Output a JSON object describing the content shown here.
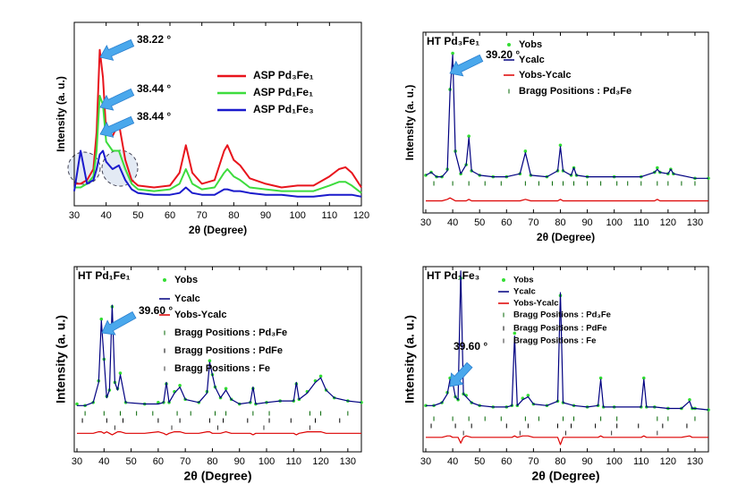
{
  "chart_data": [
    {
      "type": "line",
      "xlabel": "2θ (Degree)",
      "ylabel": "Intensity (a. u.)",
      "xlim": [
        30,
        120
      ],
      "xticks": [
        30,
        40,
        50,
        60,
        70,
        80,
        90,
        100,
        110,
        120
      ],
      "ylim": [
        0,
        100
      ],
      "x": [
        30,
        32,
        34,
        36,
        37,
        38,
        39,
        40,
        42,
        44,
        46,
        48,
        50,
        55,
        60,
        63,
        65,
        67,
        70,
        74,
        77,
        78,
        80,
        82,
        85,
        90,
        95,
        100,
        105,
        110,
        113,
        115,
        117,
        120
      ],
      "series": [
        {
          "name": "ASP Pd₃Fe₁",
          "color": "#e8141c",
          "style": "line",
          "values": [
            12,
            12,
            14,
            20,
            40,
            85,
            70,
            40,
            38,
            45,
            25,
            14,
            11,
            10,
            11,
            18,
            33,
            18,
            12,
            14,
            30,
            33,
            25,
            22,
            15,
            12,
            10,
            11,
            11,
            16,
            20,
            21,
            18,
            10
          ]
        },
        {
          "name": "ASP Pd₁Fe₁",
          "color": "#3ddc3d",
          "style": "line",
          "values": [
            10,
            10,
            12,
            16,
            30,
            60,
            55,
            35,
            30,
            30,
            20,
            12,
            9,
            8,
            9,
            12,
            20,
            12,
            9,
            10,
            18,
            20,
            16,
            14,
            10,
            9,
            8,
            8,
            8,
            11,
            13,
            13,
            11,
            7
          ]
        },
        {
          "name": "ASP Pd₁Fe₃",
          "color": "#1a1acc",
          "style": "line",
          "values": [
            8,
            30,
            12,
            14,
            20,
            28,
            30,
            24,
            20,
            22,
            14,
            9,
            7,
            6,
            6,
            7,
            10,
            7,
            6,
            6,
            9,
            9,
            8,
            8,
            7,
            6,
            6,
            5,
            5,
            6,
            6,
            6,
            6,
            5
          ]
        }
      ],
      "annotations": [
        "38.22 °",
        "38.44 °",
        "38.44 °"
      ]
    },
    {
      "type": "line",
      "title": "HT Pd₃Fe₁",
      "xlabel": "2θ (Degree)",
      "ylabel": "Intensity (a. u.)",
      "xlim": [
        29,
        135
      ],
      "xticks": [
        30,
        40,
        50,
        60,
        70,
        80,
        90,
        100,
        110,
        120,
        130
      ],
      "ylim": [
        -20,
        100
      ],
      "x": [
        30,
        32,
        34,
        36,
        38,
        39,
        40,
        41,
        43,
        45,
        46,
        47,
        50,
        55,
        60,
        65,
        67,
        69,
        75,
        79,
        80,
        81,
        84,
        85,
        86,
        90,
        100,
        110,
        115,
        116,
        117,
        120,
        121,
        122,
        130,
        135
      ],
      "series": [
        {
          "name": "Yobs",
          "color": "#33dd33",
          "style": "points",
          "values": [
            5,
            7,
            4,
            4,
            9,
            62,
            86,
            21,
            6,
            12,
            31,
            8,
            5,
            4,
            4,
            6,
            21,
            5,
            4,
            8,
            25,
            8,
            5,
            10,
            5,
            4,
            4,
            4,
            7,
            10,
            7,
            6,
            9,
            6,
            3,
            3
          ]
        },
        {
          "name": "Ycalc",
          "color": "#000080",
          "style": "line",
          "values": [
            5,
            7,
            4,
            4,
            8,
            60,
            85,
            20,
            6,
            12,
            30,
            8,
            5,
            4,
            4,
            6,
            20,
            5,
            4,
            8,
            24,
            8,
            5,
            10,
            5,
            4,
            4,
            4,
            7,
            9,
            7,
            6,
            9,
            6,
            3,
            3
          ]
        },
        {
          "name": "Yobs-Ycalc",
          "color": "#dd0000",
          "style": "line",
          "values": [
            -12,
            -12,
            -12,
            -12,
            -11,
            -10,
            -11,
            -12,
            -12,
            -12,
            -11,
            -12,
            -12,
            -12,
            -12,
            -12,
            -11,
            -12,
            -12,
            -12,
            -11,
            -12,
            -12,
            -12,
            -12,
            -12,
            -12,
            -12,
            -12,
            -11,
            -12,
            -12,
            -12,
            -12,
            -12,
            -12
          ]
        }
      ],
      "bragg": [
        {
          "name": "Bragg Positions : Pd₃Fe",
          "color": "#006400",
          "positions": [
            33,
            40,
            46,
            52,
            58,
            67,
            72,
            77,
            81,
            85,
            90,
            95,
            101,
            105,
            110,
            116,
            120,
            125,
            130
          ]
        }
      ],
      "annotations": [
        "39.20 °"
      ]
    },
    {
      "type": "line",
      "title": "HT Pd₁Fe₁",
      "xlabel": "2θ (Degree)",
      "ylabel": "Intensity (a. u.)",
      "xlim": [
        29,
        135
      ],
      "xticks": [
        30,
        40,
        50,
        60,
        70,
        80,
        90,
        100,
        110,
        120,
        130
      ],
      "ylim": [
        -20,
        100
      ],
      "x": [
        30,
        33,
        36,
        38,
        39,
        40,
        41,
        42,
        43,
        44,
        45,
        46,
        48,
        55,
        60,
        62,
        63,
        64,
        66,
        68,
        70,
        75,
        78,
        79,
        80,
        81,
        83,
        85,
        87,
        90,
        94,
        95,
        96,
        100,
        105,
        110,
        111,
        112,
        115,
        118,
        120,
        122,
        125,
        130,
        135
      ],
      "series": [
        {
          "name": "Yobs",
          "color": "#33dd33",
          "style": "points",
          "values": [
            11,
            10,
            12,
            26,
            66,
            40,
            16,
            20,
            74,
            25,
            21,
            31,
            12,
            11,
            12,
            12,
            24,
            12,
            19,
            23,
            14,
            12,
            19,
            39,
            30,
            22,
            15,
            21,
            14,
            11,
            12,
            21,
            11,
            12,
            13,
            13,
            24,
            14,
            19,
            26,
            29,
            20,
            15,
            13,
            12
          ]
        },
        {
          "name": "Ycalc",
          "color": "#000080",
          "style": "line",
          "values": [
            10,
            10,
            12,
            25,
            65,
            40,
            15,
            20,
            75,
            25,
            20,
            30,
            12,
            11,
            11,
            12,
            25,
            12,
            18,
            22,
            14,
            12,
            18,
            38,
            30,
            22,
            15,
            20,
            14,
            11,
            12,
            22,
            11,
            12,
            13,
            13,
            25,
            14,
            18,
            25,
            28,
            20,
            15,
            13,
            12
          ]
        },
        {
          "name": "Yobs-Ycalc",
          "color": "#dd0000",
          "style": "line",
          "values": [
            -8,
            -8,
            -8,
            -7,
            -7,
            -8,
            -7,
            -8,
            -9,
            -8,
            -7,
            -7,
            -8,
            -8,
            -7,
            -8,
            -9,
            -8,
            -7,
            -7,
            -8,
            -8,
            -7,
            -7,
            -8,
            -8,
            -8,
            -7,
            -8,
            -8,
            -8,
            -9,
            -8,
            -8,
            -8,
            -8,
            -9,
            -8,
            -7,
            -7,
            -7,
            -8,
            -8,
            -8,
            -8
          ]
        }
      ],
      "bragg": [
        {
          "name": "Bragg Positions : Pd₃Fe",
          "color": "#006400",
          "positions": [
            33,
            40,
            46,
            52,
            58,
            67,
            72,
            81,
            85,
            95,
            101,
            116,
            120,
            130
          ]
        },
        {
          "name": "Bragg Positions : PdFe",
          "color": "#000000",
          "positions": [
            32,
            41,
            47,
            60,
            68,
            79,
            84,
            93,
            101,
            109,
            118,
            127
          ]
        },
        {
          "name": "Bragg Positions : Fe",
          "color": "#333333",
          "positions": [
            44,
            65,
            82,
            99,
            116
          ]
        }
      ],
      "annotations": [
        "39.60 °"
      ]
    },
    {
      "type": "line",
      "title": "HT Pd₁Fe₃",
      "xlabel": "2θ (Degree)",
      "ylabel": "Intensity (a. u.)",
      "xlim": [
        29,
        135
      ],
      "xticks": [
        30,
        40,
        50,
        60,
        70,
        80,
        90,
        100,
        110,
        120,
        130
      ],
      "ylim": [
        -20,
        108
      ],
      "x": [
        30,
        33,
        36,
        38,
        39,
        40,
        41,
        42,
        43,
        44,
        45,
        47,
        50,
        55,
        60,
        62,
        63,
        64,
        66,
        68,
        70,
        75,
        79,
        80,
        81,
        85,
        90,
        94,
        95,
        96,
        100,
        110,
        111,
        112,
        115,
        120,
        125,
        128,
        129,
        130,
        135
      ],
      "series": [
        {
          "name": "Yobs",
          "color": "#33dd33",
          "style": "points",
          "values": [
            12,
            12,
            14,
            21,
            31,
            28,
            18,
            16,
            100,
            20,
            19,
            14,
            12,
            11,
            11,
            12,
            62,
            12,
            17,
            19,
            13,
            12,
            15,
            88,
            14,
            12,
            11,
            12,
            31,
            11,
            11,
            11,
            31,
            11,
            11,
            10,
            10,
            16,
            10,
            10,
            9
          ]
        },
        {
          "name": "Ycalc",
          "color": "#000080",
          "style": "line",
          "values": [
            12,
            12,
            14,
            20,
            30,
            28,
            18,
            16,
            105,
            20,
            18,
            14,
            12,
            11,
            11,
            12,
            60,
            12,
            16,
            18,
            13,
            12,
            15,
            90,
            14,
            12,
            11,
            12,
            30,
            11,
            11,
            11,
            30,
            11,
            11,
            10,
            10,
            15,
            10,
            10,
            9
          ]
        },
        {
          "name": "Yobs-Ycalc",
          "color": "#dd0000",
          "style": "line",
          "values": [
            -10,
            -10,
            -10,
            -9,
            -9,
            -10,
            -10,
            -10,
            -14,
            -10,
            -9,
            -10,
            -10,
            -10,
            -10,
            -10,
            -9,
            -10,
            -9,
            -9,
            -10,
            -10,
            -10,
            -15,
            -10,
            -10,
            -10,
            -10,
            -9,
            -10,
            -10,
            -10,
            -9,
            -10,
            -10,
            -10,
            -10,
            -9,
            -10,
            -10,
            -10
          ]
        }
      ],
      "bragg": [
        {
          "name": "Bragg Positions : Pd₃Fe",
          "color": "#006400",
          "positions": [
            33,
            40,
            46,
            52,
            58,
            67,
            72,
            81,
            85,
            95,
            101,
            116,
            120,
            130
          ]
        },
        {
          "name": "Bragg Positions : PdFe",
          "color": "#000000",
          "positions": [
            32,
            41,
            47,
            60,
            68,
            79,
            84,
            93,
            101,
            109,
            118,
            127
          ]
        },
        {
          "name": "Bragg Positions : Fe",
          "color": "#333333",
          "positions": [
            44,
            65,
            82,
            99,
            116
          ]
        }
      ],
      "annotations": [
        "39.60 °"
      ]
    }
  ]
}
